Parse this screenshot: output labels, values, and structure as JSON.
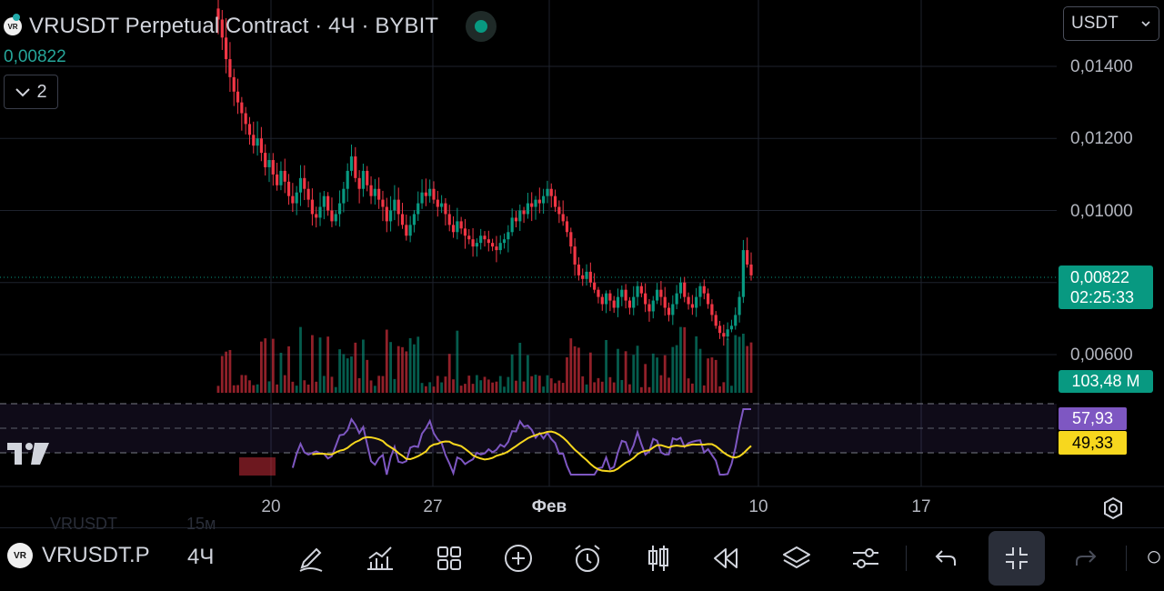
{
  "header": {
    "title": "VRUSDT Perpetual Contract · 4Ч · BYBIT",
    "last_price": "0,00822",
    "collapse_count": "2",
    "logo_text": "VR"
  },
  "currency_select": {
    "value": "USDT"
  },
  "price_axis": {
    "labels": [
      "0,01400",
      "0,01200",
      "0,01000",
      "0,00600"
    ],
    "current_price": "0,00822",
    "countdown": "02:25:33",
    "volume": "103,48 M",
    "rsi": "57,93",
    "rsi_ma": "49,33"
  },
  "time_axis": {
    "labels": [
      "20",
      "27",
      "Фев",
      "10",
      "17"
    ]
  },
  "toolbar": {
    "symbol": "VRUSDT.P",
    "timeframe": "4Ч",
    "ghost_symbol_1": "VRUSDT",
    "ghost_tf_1": "15м",
    "tools": [
      "pencil-icon",
      "indicators-icon",
      "grid-icon",
      "add-icon",
      "alarm-icon",
      "candles-icon",
      "replay-icon",
      "layers-icon",
      "settings-sliders-icon",
      "undo-icon",
      "collapse-icon",
      "redo-icon"
    ]
  },
  "colors": {
    "up": "#089981",
    "down": "#f23645",
    "rsi": "#7e57c2",
    "rsi_ma": "#f7d71e",
    "bg": "#000000"
  },
  "chart_data": {
    "type": "candlestick",
    "symbol": "VRUSDT",
    "interval": "4Ч",
    "ylim": [
      0.0058,
      0.0149
    ],
    "price_ticks": [
      0.014,
      0.012,
      0.01,
      0.006
    ],
    "last_price": 0.00822,
    "closes": [
      0.0153,
      0.0148,
      0.0142,
      0.0137,
      0.0133,
      0.013,
      0.0127,
      0.0124,
      0.0121,
      0.0118,
      0.012,
      0.0116,
      0.0112,
      0.0114,
      0.011,
      0.0107,
      0.0111,
      0.0108,
      0.0104,
      0.0102,
      0.0105,
      0.0109,
      0.0106,
      0.0103,
      0.0099,
      0.0098,
      0.0101,
      0.0104,
      0.01,
      0.0097,
      0.0099,
      0.0102,
      0.0106,
      0.0111,
      0.0115,
      0.0109,
      0.0106,
      0.0111,
      0.0107,
      0.0104,
      0.0106,
      0.0103,
      0.0101,
      0.0097,
      0.01,
      0.0103,
      0.0099,
      0.0096,
      0.0093,
      0.0096,
      0.0099,
      0.0102,
      0.0105,
      0.0104,
      0.0106,
      0.0103,
      0.0101,
      0.0102,
      0.0099,
      0.0096,
      0.0094,
      0.0097,
      0.0095,
      0.0093,
      0.0092,
      0.009,
      0.0091,
      0.0093,
      0.0092,
      0.0091,
      0.009,
      0.0089,
      0.0091,
      0.0092,
      0.0094,
      0.0098,
      0.0097,
      0.01,
      0.0099,
      0.0102,
      0.0101,
      0.0103,
      0.0102,
      0.0104,
      0.0106,
      0.0104,
      0.0101,
      0.0099,
      0.0097,
      0.0094,
      0.009,
      0.0085,
      0.0082,
      0.0081,
      0.0083,
      0.008,
      0.0078,
      0.0076,
      0.0074,
      0.0077,
      0.0075,
      0.0073,
      0.0076,
      0.0078,
      0.0075,
      0.0073,
      0.0076,
      0.0079,
      0.0077,
      0.0074,
      0.0072,
      0.0075,
      0.0078,
      0.0076,
      0.0073,
      0.0071,
      0.0074,
      0.0077,
      0.008,
      0.0076,
      0.0074,
      0.0073,
      0.0076,
      0.0079,
      0.0077,
      0.0074,
      0.0071,
      0.0068,
      0.0066,
      0.0065,
      0.0067,
      0.0068,
      0.0071,
      0.0076,
      0.0089,
      0.0085,
      0.0082
    ]
  }
}
